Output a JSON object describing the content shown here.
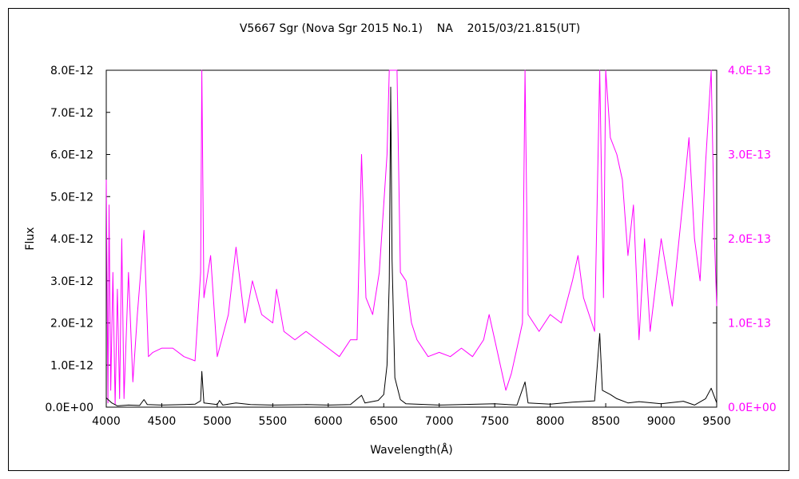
{
  "chart_data": {
    "type": "line",
    "title": "V5667 Sgr (Nova Sgr 2015 No.1)    NA    2015/03/21.815(UT)",
    "xlabel": "Wavelength(Å)",
    "ylabel": "Flux",
    "xlim": [
      4000,
      9500
    ],
    "ylim": [
      0,
      8e-12
    ],
    "y2lim": [
      0,
      4e-13
    ],
    "grid": false,
    "xticks": [
      4000,
      4500,
      5000,
      5500,
      6000,
      6500,
      7000,
      7500,
      8000,
      8500,
      9000,
      9500
    ],
    "xtick_labels": [
      "4000",
      "4500",
      "5000",
      "5500",
      "6000",
      "6500",
      "7000",
      "7500",
      "8000",
      "8500",
      "9000",
      "9500"
    ],
    "ytick_labels": [
      "0.0E+00",
      "1.0E-12",
      "2.0E-12",
      "3.0E-12",
      "4.0E-12",
      "5.0E-12",
      "6.0E-12",
      "7.0E-12",
      "8.0E-12"
    ],
    "y2tick_labels": [
      "0.0E+00",
      "1.0E-13",
      "2.0E-13",
      "3.0E-13",
      "4.0E-13"
    ],
    "colors": {
      "primary": "#000000",
      "secondary": "#ff00ff"
    },
    "series": [
      {
        "axis": "left",
        "color": "#000000",
        "points": [
          [
            4000,
            2.2e-13
          ],
          [
            4050,
            1e-13
          ],
          [
            4100,
            3e-14
          ],
          [
            4200,
            5e-14
          ],
          [
            4300,
            4e-14
          ],
          [
            4340,
            1.8e-13
          ],
          [
            4370,
            6e-14
          ],
          [
            4500,
            5e-14
          ],
          [
            4700,
            6e-14
          ],
          [
            4800,
            7e-14
          ],
          [
            4850,
            1.5e-13
          ],
          [
            4861,
            8.5e-13
          ],
          [
            4880,
            1e-13
          ],
          [
            5000,
            6e-14
          ],
          [
            5020,
            1.6e-13
          ],
          [
            5050,
            5e-14
          ],
          [
            5169,
            1e-13
          ],
          [
            5300,
            6e-14
          ],
          [
            5500,
            5e-14
          ],
          [
            5800,
            6e-14
          ],
          [
            6000,
            5e-14
          ],
          [
            6200,
            6e-14
          ],
          [
            6300,
            2.8e-13
          ],
          [
            6330,
            1e-13
          ],
          [
            6450,
            1.6e-13
          ],
          [
            6500,
            3e-13
          ],
          [
            6530,
            1e-12
          ],
          [
            6550,
            3e-12
          ],
          [
            6563,
            7.6e-12
          ],
          [
            6575,
            3.5e-12
          ],
          [
            6600,
            7e-13
          ],
          [
            6650,
            1.8e-13
          ],
          [
            6700,
            8e-14
          ],
          [
            7000,
            5e-14
          ],
          [
            7200,
            6e-14
          ],
          [
            7500,
            8e-14
          ],
          [
            7700,
            5e-14
          ],
          [
            7773,
            6e-13
          ],
          [
            7800,
            1e-13
          ],
          [
            8000,
            7e-14
          ],
          [
            8200,
            1.2e-13
          ],
          [
            8400,
            1.5e-13
          ],
          [
            8446,
            1.75e-12
          ],
          [
            8470,
            4e-13
          ],
          [
            8542,
            3e-13
          ],
          [
            8600,
            2e-13
          ],
          [
            8700,
            1e-13
          ],
          [
            8800,
            1.3e-13
          ],
          [
            9000,
            8e-14
          ],
          [
            9200,
            1.4e-13
          ],
          [
            9300,
            5e-14
          ],
          [
            9400,
            2e-13
          ],
          [
            9450,
            4.5e-13
          ],
          [
            9500,
            1e-13
          ]
        ]
      },
      {
        "axis": "right",
        "color": "#ff00ff",
        "points": [
          [
            4000,
            2.7e-13
          ],
          [
            4015,
            5e-15
          ],
          [
            4025,
            2.4e-13
          ],
          [
            4040,
            2e-14
          ],
          [
            4060,
            1.6e-13
          ],
          [
            4080,
            3e-15
          ],
          [
            4100,
            1.4e-13
          ],
          [
            4120,
            1e-14
          ],
          [
            4140,
            2e-13
          ],
          [
            4160,
            1e-14
          ],
          [
            4200,
            1.6e-13
          ],
          [
            4240,
            3e-14
          ],
          [
            4280,
            1.1e-13
          ],
          [
            4340,
            2.1e-13
          ],
          [
            4380,
            6e-14
          ],
          [
            4420,
            6.5e-14
          ],
          [
            4500,
            7e-14
          ],
          [
            4600,
            7e-14
          ],
          [
            4700,
            6e-14
          ],
          [
            4800,
            5.5e-14
          ],
          [
            4850,
            1.6e-13
          ],
          [
            4861,
            4e-13
          ],
          [
            4880,
            1.3e-13
          ],
          [
            4940,
            1.8e-13
          ],
          [
            5000,
            6e-14
          ],
          [
            5100,
            1.1e-13
          ],
          [
            5169,
            1.9e-13
          ],
          [
            5250,
            1e-13
          ],
          [
            5317,
            1.5e-13
          ],
          [
            5400,
            1.1e-13
          ],
          [
            5500,
            1e-13
          ],
          [
            5534,
            1.4e-13
          ],
          [
            5600,
            9e-14
          ],
          [
            5700,
            8e-14
          ],
          [
            5800,
            9e-14
          ],
          [
            5900,
            8e-14
          ],
          [
            6000,
            7e-14
          ],
          [
            6100,
            6e-14
          ],
          [
            6200,
            8e-14
          ],
          [
            6260,
            8e-14
          ],
          [
            6300,
            3e-13
          ],
          [
            6340,
            1.3e-13
          ],
          [
            6400,
            1.1e-13
          ],
          [
            6460,
            1.6e-13
          ],
          [
            6530,
            3e-13
          ],
          [
            6550,
            4e-13
          ],
          [
            6620,
            4e-13
          ],
          [
            6650,
            1.6e-13
          ],
          [
            6700,
            1.5e-13
          ],
          [
            6750,
            1e-13
          ],
          [
            6800,
            8e-14
          ],
          [
            6900,
            6e-14
          ],
          [
            7000,
            6.5e-14
          ],
          [
            7100,
            6e-14
          ],
          [
            7200,
            7e-14
          ],
          [
            7300,
            6e-14
          ],
          [
            7400,
            8e-14
          ],
          [
            7450,
            1.1e-13
          ],
          [
            7500,
            8e-14
          ],
          [
            7600,
            2e-14
          ],
          [
            7650,
            4e-14
          ],
          [
            7700,
            7e-14
          ],
          [
            7750,
            1e-13
          ],
          [
            7773,
            4e-13
          ],
          [
            7800,
            1.1e-13
          ],
          [
            7900,
            9e-14
          ],
          [
            8000,
            1.1e-13
          ],
          [
            8100,
            1e-13
          ],
          [
            8200,
            1.5e-13
          ],
          [
            8250,
            1.8e-13
          ],
          [
            8300,
            1.3e-13
          ],
          [
            8400,
            9e-14
          ],
          [
            8446,
            4e-13
          ],
          [
            8480,
            1.3e-13
          ],
          [
            8500,
            4e-13
          ],
          [
            8542,
            3.2e-13
          ],
          [
            8600,
            3e-13
          ],
          [
            8650,
            2.7e-13
          ],
          [
            8700,
            1.8e-13
          ],
          [
            8750,
            2.4e-13
          ],
          [
            8800,
            8e-14
          ],
          [
            8850,
            2e-13
          ],
          [
            8900,
            9e-14
          ],
          [
            9000,
            2e-13
          ],
          [
            9100,
            1.2e-13
          ],
          [
            9200,
            2.5e-13
          ],
          [
            9250,
            3.2e-13
          ],
          [
            9300,
            2e-13
          ],
          [
            9350,
            1.5e-13
          ],
          [
            9400,
            2.9e-13
          ],
          [
            9450,
            4e-13
          ],
          [
            9480,
            2e-13
          ],
          [
            9500,
            1.2e-13
          ]
        ]
      }
    ]
  }
}
